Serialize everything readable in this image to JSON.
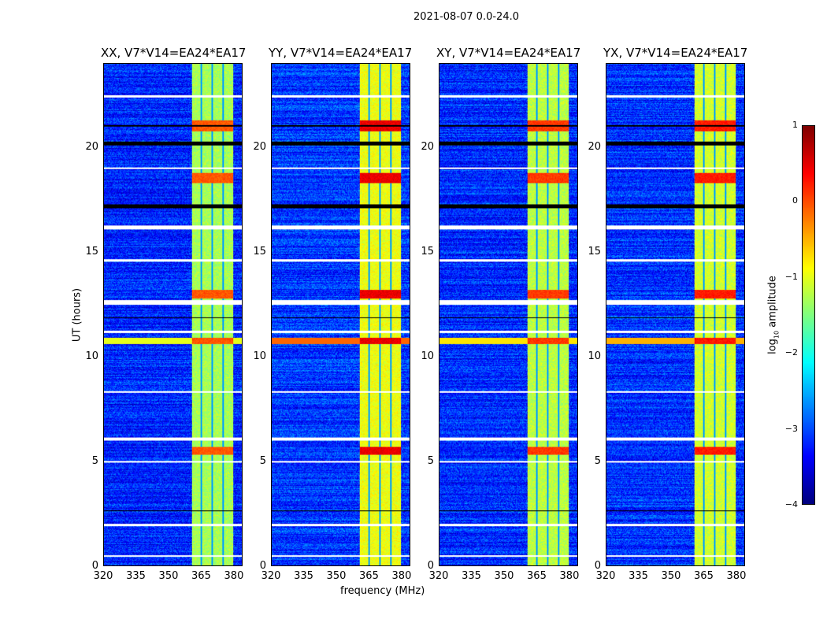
{
  "figure_title": "2021-08-07 0.0-24.0",
  "chart_data": {
    "type": "heatmap",
    "title": "2021-08-07 0.0-24.0",
    "xlabel": "frequency (MHz)",
    "ylabel": "UT (hours)",
    "xlim": [
      320,
      384
    ],
    "ylim": [
      0,
      24
    ],
    "xticks": [
      320,
      335,
      350,
      365,
      380
    ],
    "yticks": [
      0,
      5,
      10,
      15,
      20
    ],
    "panels": [
      {
        "title": "XX, V7*V14=EA24*EA17",
        "level_boost": 0
      },
      {
        "title": "YY, V7*V14=EA24*EA17",
        "level_boost": 0.35
      },
      {
        "title": "XY, V7*V14=EA24*EA17",
        "level_boost": 0.1
      },
      {
        "title": "YX, V7*V14=EA24*EA17",
        "level_boost": 0.2
      }
    ],
    "bright_band_mhz": [
      360.5,
      380
    ],
    "band_gap_mhz": [
      365,
      370,
      375
    ],
    "background_log10": -3.2,
    "band_log10": -1.3,
    "bright_time_hours": [
      [
        10.6,
        10.9
      ],
      [
        18.3,
        18.8
      ],
      [
        20.8,
        21.3
      ],
      [
        12.8,
        13.2
      ],
      [
        5.3,
        5.7
      ]
    ],
    "flagged_hours": [
      [
        22.4,
        22.5
      ],
      [
        16.1,
        16.3
      ],
      [
        14.55,
        14.65
      ],
      [
        12.5,
        12.7
      ],
      [
        11.15,
        11.25
      ],
      [
        6.0,
        6.15
      ],
      [
        4.95,
        5.02
      ],
      [
        1.88,
        2.0
      ],
      [
        0.45,
        0.52
      ],
      [
        8.3,
        8.35
      ],
      [
        19.0,
        19.05
      ]
    ],
    "dropout_hours": [
      [
        20.1,
        20.3
      ],
      [
        17.1,
        17.3
      ],
      [
        21.0,
        21.1
      ],
      [
        11.85,
        11.9
      ],
      [
        2.6,
        2.65
      ]
    ],
    "colorbar": {
      "label": "log10 amplitude",
      "label_main": "log",
      "label_sub": "10",
      "label_rest": " amplitude",
      "range": [
        -4,
        1
      ],
      "ticks": [
        "1",
        "0",
        "−1",
        "−2",
        "−3",
        "−4"
      ],
      "colormap": "jet"
    }
  }
}
